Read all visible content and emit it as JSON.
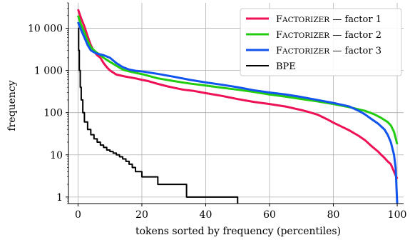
{
  "chart_data": {
    "type": "line",
    "title": "",
    "xlabel": "tokens sorted by frequency (percentiles)",
    "ylabel": "frequency",
    "xlim": [
      -3,
      102
    ],
    "ylim": [
      0.7,
      40000
    ],
    "yscale": "log",
    "grid": true,
    "legend_position": "top-right",
    "xticks": [
      0,
      20,
      40,
      60,
      80,
      100
    ],
    "xtick_labels": [
      "0",
      "20",
      "40",
      "60",
      "80",
      "100"
    ],
    "yticks": [
      1,
      10,
      100,
      1000,
      10000
    ],
    "ytick_labels": [
      "1",
      "10",
      "100",
      "1 000",
      "10 000"
    ],
    "series": [
      {
        "name_main": "Factorizer",
        "name_rest": " — factor 1",
        "color": "#ee1155",
        "x": [
          0,
          1,
          2,
          3,
          4,
          5,
          6,
          7,
          8,
          9,
          10,
          12,
          14,
          16,
          18,
          20,
          22,
          25,
          28,
          30,
          33,
          36,
          40,
          45,
          50,
          55,
          60,
          65,
          70,
          72,
          75,
          78,
          80,
          83,
          85,
          88,
          90,
          92,
          94,
          95,
          96,
          97,
          98,
          99,
          100
        ],
        "y": [
          28000,
          17000,
          11000,
          6500,
          4000,
          2800,
          2300,
          2000,
          1500,
          1200,
          1000,
          800,
          740,
          690,
          650,
          600,
          560,
          480,
          420,
          390,
          350,
          330,
          290,
          250,
          210,
          180,
          160,
          140,
          115,
          105,
          90,
          70,
          58,
          45,
          38,
          28,
          22,
          16,
          12,
          10,
          8.5,
          7,
          6,
          4,
          2.7
        ]
      },
      {
        "name_main": "Factorizer",
        "name_rest": " — factor 2",
        "color": "#22cc11",
        "x": [
          0,
          1,
          2,
          3,
          4,
          5,
          6,
          7,
          8,
          10,
          12,
          14,
          16,
          18,
          20,
          22,
          25,
          30,
          35,
          40,
          45,
          50,
          55,
          60,
          65,
          70,
          75,
          80,
          85,
          90,
          93,
          95,
          97,
          98,
          99,
          100
        ],
        "y": [
          20000,
          12000,
          8000,
          5000,
          3600,
          3000,
          2600,
          2300,
          2000,
          1600,
          1300,
          1050,
          950,
          880,
          820,
          750,
          650,
          560,
          490,
          440,
          390,
          350,
          310,
          270,
          240,
          210,
          185,
          160,
          135,
          110,
          90,
          75,
          60,
          50,
          35,
          18
        ]
      },
      {
        "name_main": "Factorizer",
        "name_rest": " — factor 3",
        "color": "#1155ee",
        "x": [
          0,
          1,
          2,
          3,
          4,
          5,
          6,
          8,
          10,
          12,
          14,
          16,
          18,
          20,
          22,
          25,
          30,
          35,
          40,
          45,
          50,
          55,
          60,
          65,
          70,
          75,
          80,
          85,
          88,
          90,
          92,
          94,
          96,
          97,
          98,
          99,
          99.5,
          100
        ],
        "y": [
          14000,
          9000,
          6000,
          4000,
          3000,
          2700,
          2500,
          2300,
          2000,
          1500,
          1200,
          1050,
          980,
          950,
          900,
          830,
          710,
          600,
          520,
          460,
          400,
          340,
          300,
          270,
          235,
          200,
          170,
          140,
          110,
          90,
          70,
          55,
          40,
          30,
          20,
          10,
          5,
          0.7
        ]
      },
      {
        "name_main": "BPE",
        "name_rest": "",
        "color": "#000000",
        "step_after": true,
        "x": [
          0,
          0.2,
          0.4,
          0.7,
          1,
          1.5,
          2,
          3,
          4,
          5,
          6,
          7,
          8,
          9,
          10,
          11,
          12,
          13,
          14,
          15,
          16,
          17,
          18,
          20,
          22,
          25,
          34,
          50,
          50
        ],
        "y": [
          10000,
          3000,
          1000,
          400,
          200,
          100,
          60,
          40,
          30,
          24,
          20,
          17,
          15,
          13,
          12,
          11,
          10,
          9,
          8,
          7,
          6,
          5,
          4,
          3,
          3,
          2,
          1,
          1,
          0.7
        ]
      }
    ]
  }
}
